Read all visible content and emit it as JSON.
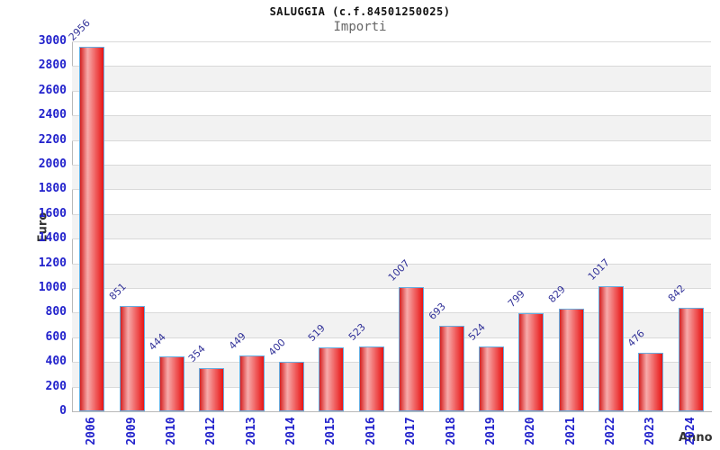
{
  "header": {
    "title": "SALUGGIA (c.f.84501250025)",
    "subtitle": "Importi"
  },
  "chart_data": {
    "type": "bar",
    "title": "SALUGGIA (c.f.84501250025)",
    "subtitle": "Importi",
    "xlabel": "Anno",
    "ylabel": "Euro",
    "categories": [
      "2006",
      "2009",
      "2010",
      "2012",
      "2013",
      "2014",
      "2015",
      "2016",
      "2017",
      "2018",
      "2019",
      "2020",
      "2021",
      "2022",
      "2023",
      "2024"
    ],
    "values": [
      2956,
      851,
      444,
      354,
      449,
      400,
      519,
      523,
      1007,
      693,
      524,
      799,
      829,
      1017,
      476,
      842
    ],
    "ylim": [
      0,
      3000
    ],
    "ytick_step": 200,
    "grid": true,
    "legend": "none",
    "colors": {
      "tick_label": "#2222cc",
      "value_label": "#333399",
      "bar_border": "#66ade0",
      "bar_red_left": "#d42020",
      "bar_red_light": "#f7abab",
      "bar_red_right": "#e81414",
      "band_gray": "#f2f2f2",
      "gridline": "#d9d9d9",
      "axis_line": "#b8b8b8",
      "title": "#111111",
      "subtitle": "#666666",
      "axis_label": "#333333"
    }
  }
}
